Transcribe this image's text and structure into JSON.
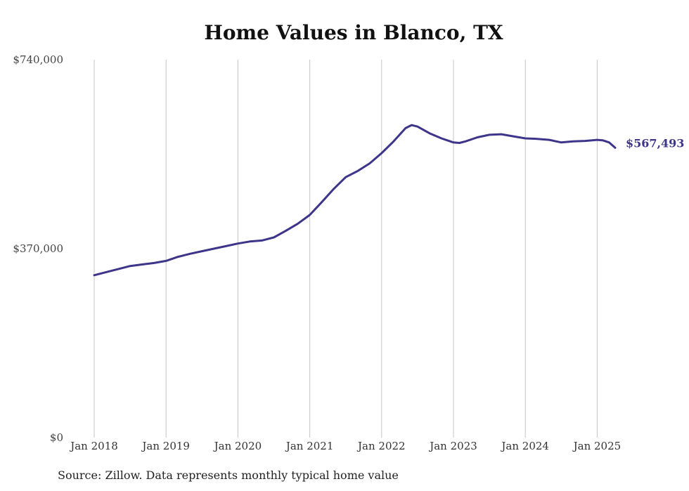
{
  "chart_data": {
    "type": "line",
    "title": "Home Values in Blanco, TX",
    "x_tick_labels": [
      "Jan 2018",
      "Jan 2019",
      "Jan 2020",
      "Jan 2021",
      "Jan 2022",
      "Jan 2023",
      "Jan 2024",
      "Jan 2025"
    ],
    "y_tick_labels": [
      "$740,000",
      "$370,000",
      "$0"
    ],
    "ylim": [
      0,
      740000
    ],
    "grid": "vertical",
    "line_color": "#3d3589",
    "end_label": "$567,493",
    "series": [
      {
        "x": [
          "2018-01",
          "2018-03",
          "2018-05",
          "2018-07",
          "2018-09",
          "2018-11",
          "2019-01",
          "2019-03",
          "2019-05",
          "2019-07",
          "2019-09",
          "2019-11",
          "2020-01",
          "2020-03",
          "2020-05",
          "2020-07",
          "2020-09",
          "2020-11",
          "2021-01",
          "2021-03",
          "2021-05",
          "2021-07",
          "2021-09",
          "2021-11",
          "2022-01",
          "2022-03",
          "2022-05",
          "2022-06",
          "2022-07",
          "2022-09",
          "2022-11",
          "2023-01",
          "2023-02",
          "2023-03",
          "2023-05",
          "2023-07",
          "2023-09",
          "2023-11",
          "2024-01",
          "2024-03",
          "2024-05",
          "2024-07",
          "2024-09",
          "2024-11",
          "2025-01",
          "2025-02",
          "2025-03",
          "2025-04"
        ],
        "y": [
          318000,
          324000,
          330000,
          336000,
          339000,
          342000,
          346000,
          354000,
          360000,
          365000,
          370000,
          375000,
          380000,
          384000,
          386000,
          392000,
          405000,
          419000,
          436000,
          461000,
          487000,
          510000,
          522000,
          537000,
          557000,
          580000,
          606000,
          612000,
          609000,
          596000,
          586000,
          578000,
          577000,
          580000,
          588000,
          593000,
          594000,
          590000,
          586000,
          585000,
          583000,
          578000,
          580000,
          581000,
          583000,
          582000,
          578000,
          567493
        ]
      }
    ]
  },
  "source": "Source: Zillow. Data represents monthly typical home value"
}
